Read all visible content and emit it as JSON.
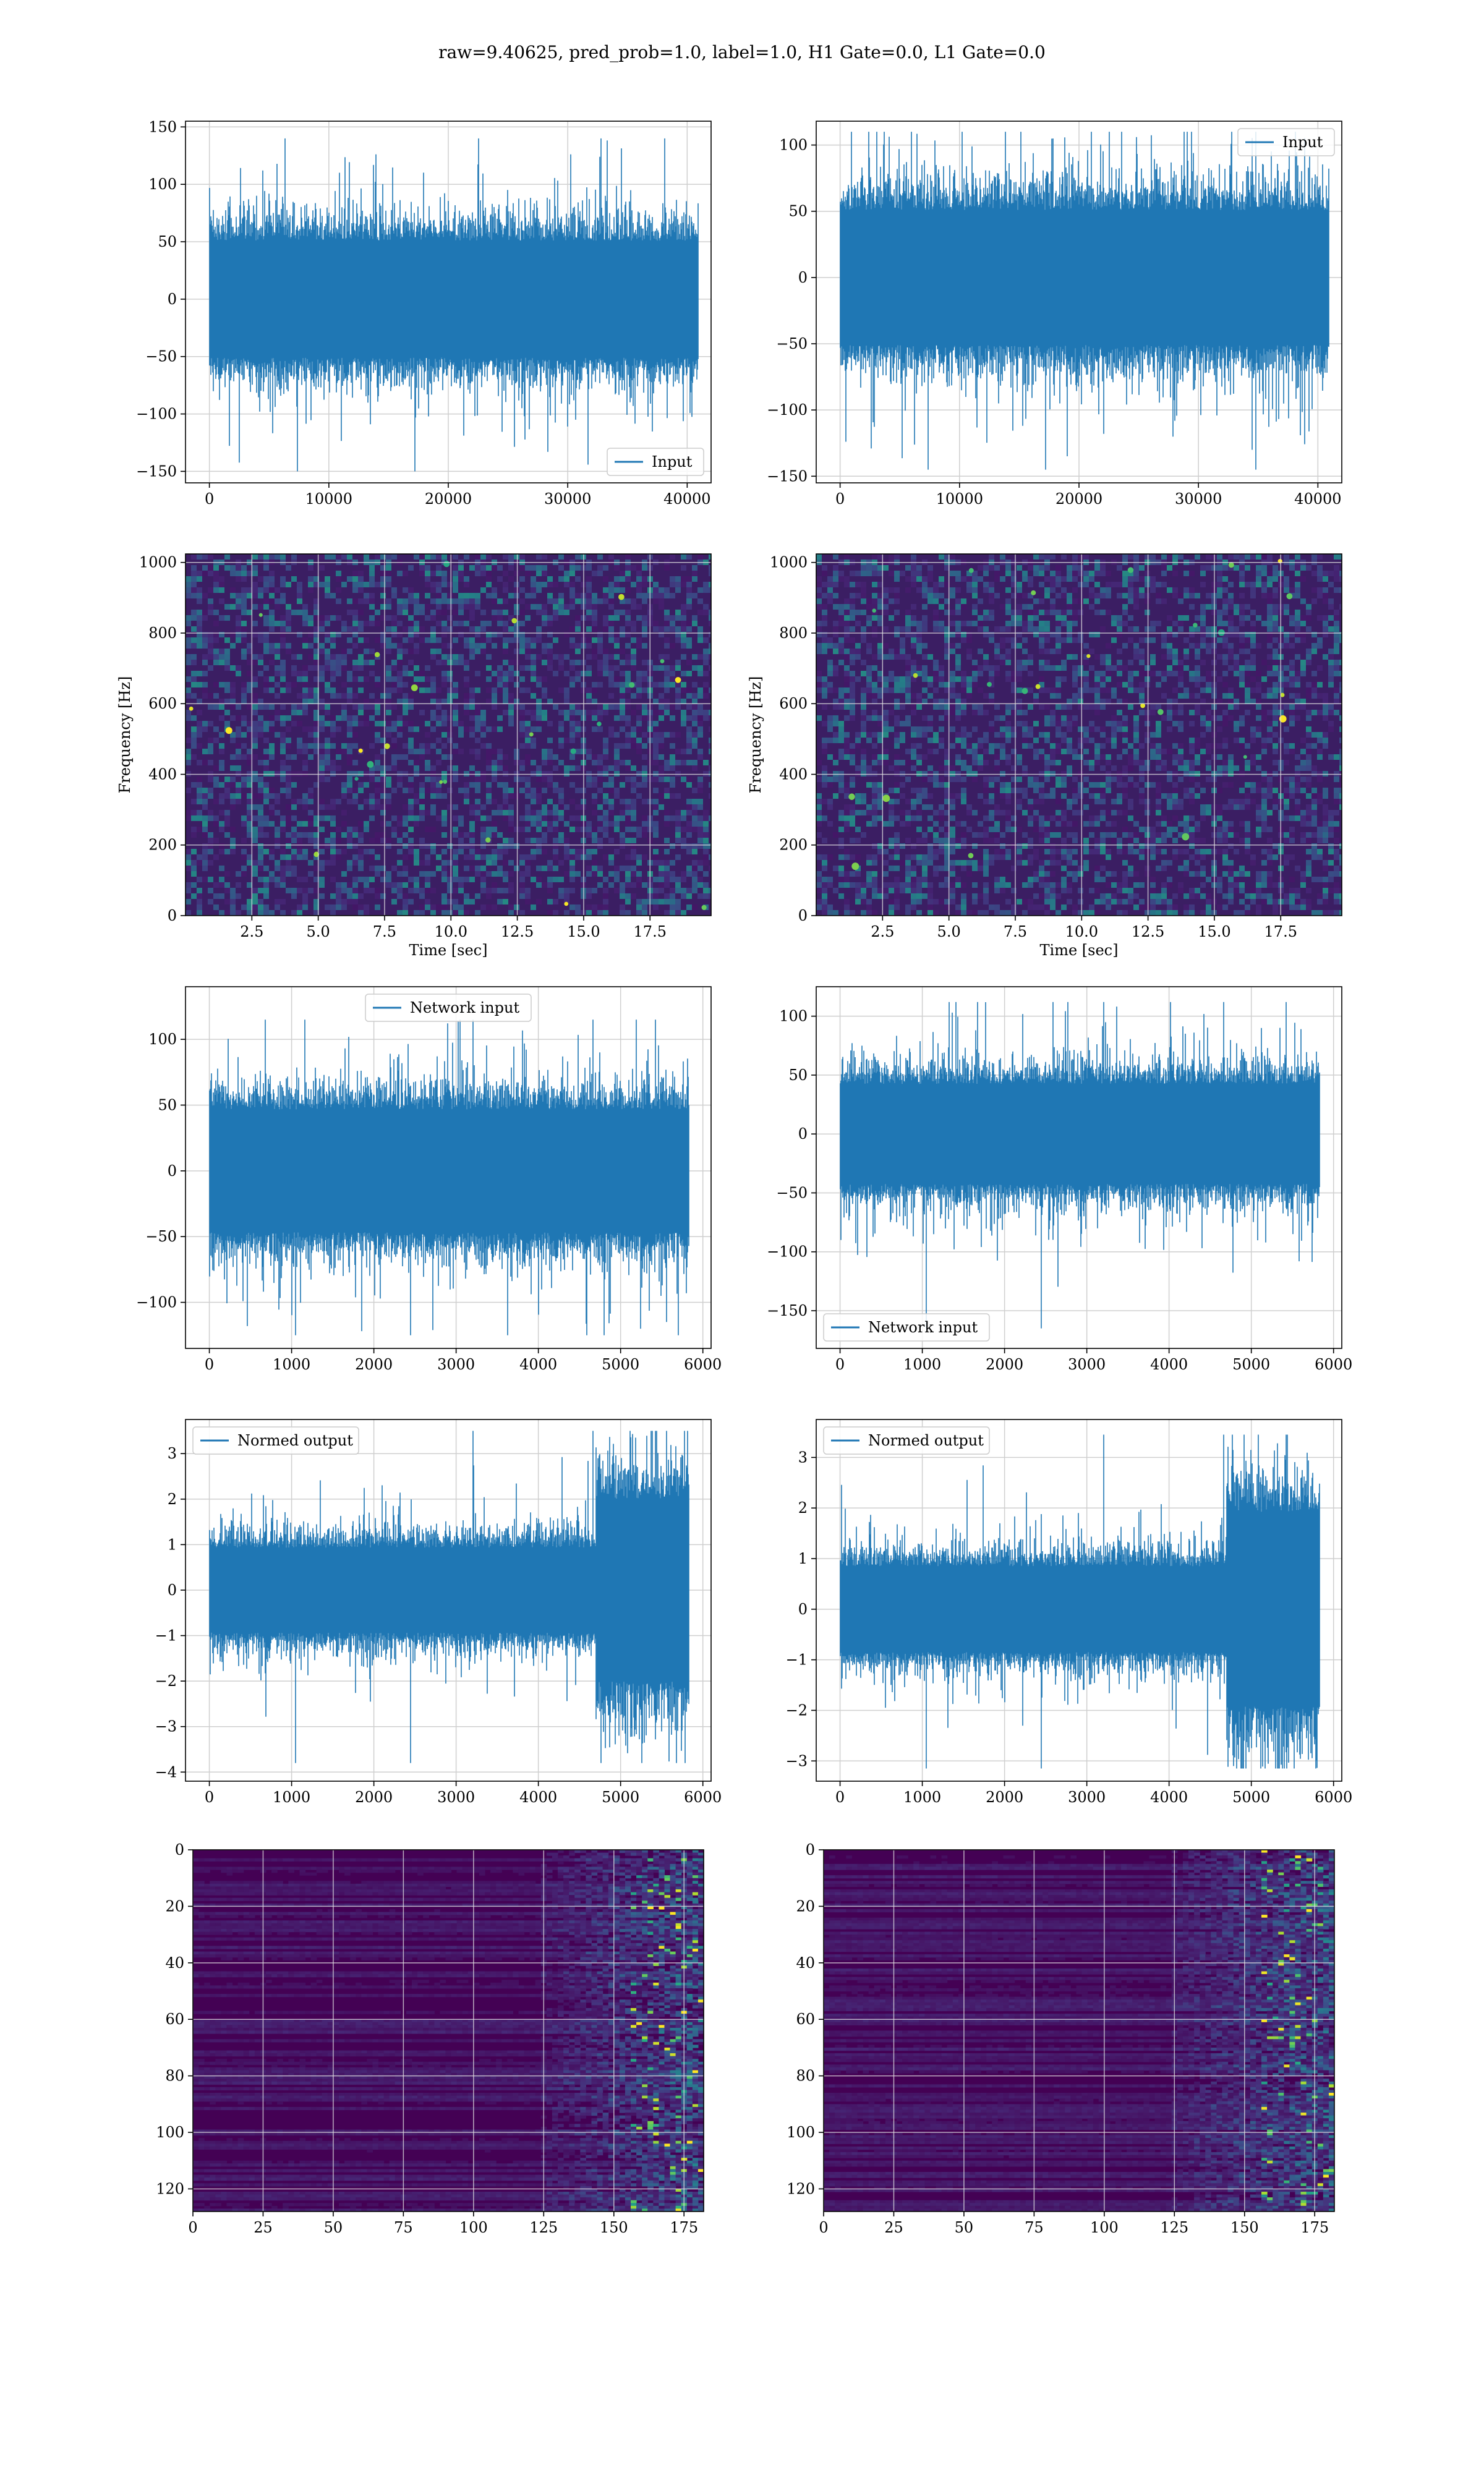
{
  "figure": {
    "suptitle": "raw=9.40625, pred_prob=1.0, label=1.0, H1 Gate=0.0, L1 Gate=0.0"
  },
  "colors": {
    "line": "#1f77b4",
    "grid": "#cfcfcf",
    "axis": "#000000",
    "viridis_low": "#440154",
    "viridis_mid": "#21918c",
    "viridis_high": "#fde725"
  },
  "chart_data": [
    {
      "id": "h1-input",
      "type": "line",
      "series": [
        {
          "name": "Input"
        }
      ],
      "legend": "lower right",
      "xlim": [
        -2000,
        42000
      ],
      "ylim": [
        -160,
        155
      ],
      "xticks": [
        0,
        10000,
        20000,
        30000,
        40000
      ],
      "yticks": [
        -150,
        -100,
        -50,
        0,
        50,
        100,
        150
      ],
      "xlabel": "",
      "ylabel": "",
      "grid": true,
      "signal": {
        "n_samples": 40960,
        "core_amplitude": 60,
        "peak_max": 140,
        "peak_min": -150
      }
    },
    {
      "id": "l1-input",
      "type": "line",
      "series": [
        {
          "name": "Input"
        }
      ],
      "legend": "upper right",
      "xlim": [
        -2000,
        42000
      ],
      "ylim": [
        -155,
        118
      ],
      "xticks": [
        0,
        10000,
        20000,
        30000,
        40000
      ],
      "yticks": [
        -150,
        -100,
        -50,
        0,
        50,
        100
      ],
      "xlabel": "",
      "ylabel": "",
      "grid": true,
      "signal": {
        "n_samples": 40960,
        "core_amplitude": 60,
        "peak_max": 110,
        "peak_min": -145
      }
    },
    {
      "id": "h1-spectrogram",
      "type": "heatmap",
      "xlim": [
        0,
        19.8
      ],
      "ylim": [
        0,
        1024
      ],
      "xticks": [
        2.5,
        5.0,
        7.5,
        10.0,
        12.5,
        15.0,
        17.5
      ],
      "xtick_labels": [
        "2.5",
        "5.0",
        "7.5",
        "10.0",
        "12.5",
        "15.0",
        "17.5"
      ],
      "yticks": [
        0,
        200,
        400,
        600,
        800,
        1000
      ],
      "xlabel": "Time [sec]",
      "ylabel": "Frequency [Hz]",
      "grid": true,
      "colormap": "viridis"
    },
    {
      "id": "l1-spectrogram",
      "type": "heatmap",
      "xlim": [
        0,
        19.8
      ],
      "ylim": [
        0,
        1024
      ],
      "xticks": [
        2.5,
        5.0,
        7.5,
        10.0,
        12.5,
        15.0,
        17.5
      ],
      "xtick_labels": [
        "2.5",
        "5.0",
        "7.5",
        "10.0",
        "12.5",
        "15.0",
        "17.5"
      ],
      "yticks": [
        0,
        200,
        400,
        600,
        800,
        1000
      ],
      "xlabel": "Time [sec]",
      "ylabel": "Frequency [Hz]",
      "grid": true,
      "colormap": "viridis"
    },
    {
      "id": "h1-network-input",
      "type": "line",
      "series": [
        {
          "name": "Network input"
        }
      ],
      "legend": "upper center",
      "xlim": [
        -290,
        6100
      ],
      "ylim": [
        -135,
        140
      ],
      "xticks": [
        0,
        1000,
        2000,
        3000,
        4000,
        5000,
        6000
      ],
      "yticks": [
        -100,
        -50,
        0,
        50,
        100
      ],
      "xlabel": "",
      "ylabel": "",
      "grid": true,
      "signal": {
        "n_samples": 5832,
        "core_amplitude": 55,
        "peak_max": 115,
        "peak_min": -125
      }
    },
    {
      "id": "l1-network-input",
      "type": "line",
      "series": [
        {
          "name": "Network input"
        }
      ],
      "legend": "lower left",
      "xlim": [
        -290,
        6100
      ],
      "ylim": [
        -182,
        125
      ],
      "xticks": [
        0,
        1000,
        2000,
        3000,
        4000,
        5000,
        6000
      ],
      "yticks": [
        -150,
        -100,
        -50,
        0,
        50,
        100
      ],
      "xlabel": "",
      "ylabel": "",
      "grid": true,
      "signal": {
        "n_samples": 5832,
        "core_amplitude": 50,
        "peak_max": 112,
        "peak_min": -165
      }
    },
    {
      "id": "h1-normed-output",
      "type": "line",
      "series": [
        {
          "name": "Normed output"
        }
      ],
      "legend": "upper left",
      "xlim": [
        -290,
        6100
      ],
      "ylim": [
        -4.2,
        3.75
      ],
      "xticks": [
        0,
        1000,
        2000,
        3000,
        4000,
        5000,
        6000
      ],
      "yticks": [
        -4,
        -3,
        -2,
        -1,
        0,
        1,
        2,
        3
      ],
      "xlabel": "",
      "ylabel": "",
      "grid": true,
      "signal": {
        "n_samples": 5832,
        "core_amplitude": 1.1,
        "burst_start": 4700,
        "burst_amplitude": 3.4,
        "peak_max": 3.5,
        "peak_min": -3.8
      }
    },
    {
      "id": "l1-normed-output",
      "type": "line",
      "series": [
        {
          "name": "Normed output"
        }
      ],
      "legend": "upper left",
      "xlim": [
        -290,
        6100
      ],
      "ylim": [
        -3.4,
        3.75
      ],
      "xticks": [
        0,
        1000,
        2000,
        3000,
        4000,
        5000,
        6000
      ],
      "yticks": [
        -3,
        -2,
        -1,
        0,
        1,
        2,
        3
      ],
      "xlabel": "",
      "ylabel": "",
      "grid": true,
      "signal": {
        "n_samples": 5832,
        "core_amplitude": 1.0,
        "burst_start": 4700,
        "burst_amplitude": 3.3,
        "peak_max": 3.45,
        "peak_min": -3.15
      }
    },
    {
      "id": "h1-feature-map",
      "type": "heatmap",
      "xlim": [
        0,
        182
      ],
      "ylim": [
        128,
        0
      ],
      "xticks": [
        0,
        25,
        50,
        75,
        100,
        125,
        150,
        175
      ],
      "yticks": [
        0,
        20,
        40,
        60,
        80,
        100,
        120
      ],
      "xlabel": "",
      "ylabel": "",
      "grid": true,
      "colormap": "viridis"
    },
    {
      "id": "l1-feature-map",
      "type": "heatmap",
      "xlim": [
        0,
        182
      ],
      "ylim": [
        128,
        0
      ],
      "xticks": [
        0,
        25,
        50,
        75,
        100,
        125,
        150,
        175
      ],
      "yticks": [
        0,
        20,
        40,
        60,
        80,
        100,
        120
      ],
      "xlabel": "",
      "ylabel": "",
      "grid": true,
      "colormap": "viridis"
    }
  ]
}
